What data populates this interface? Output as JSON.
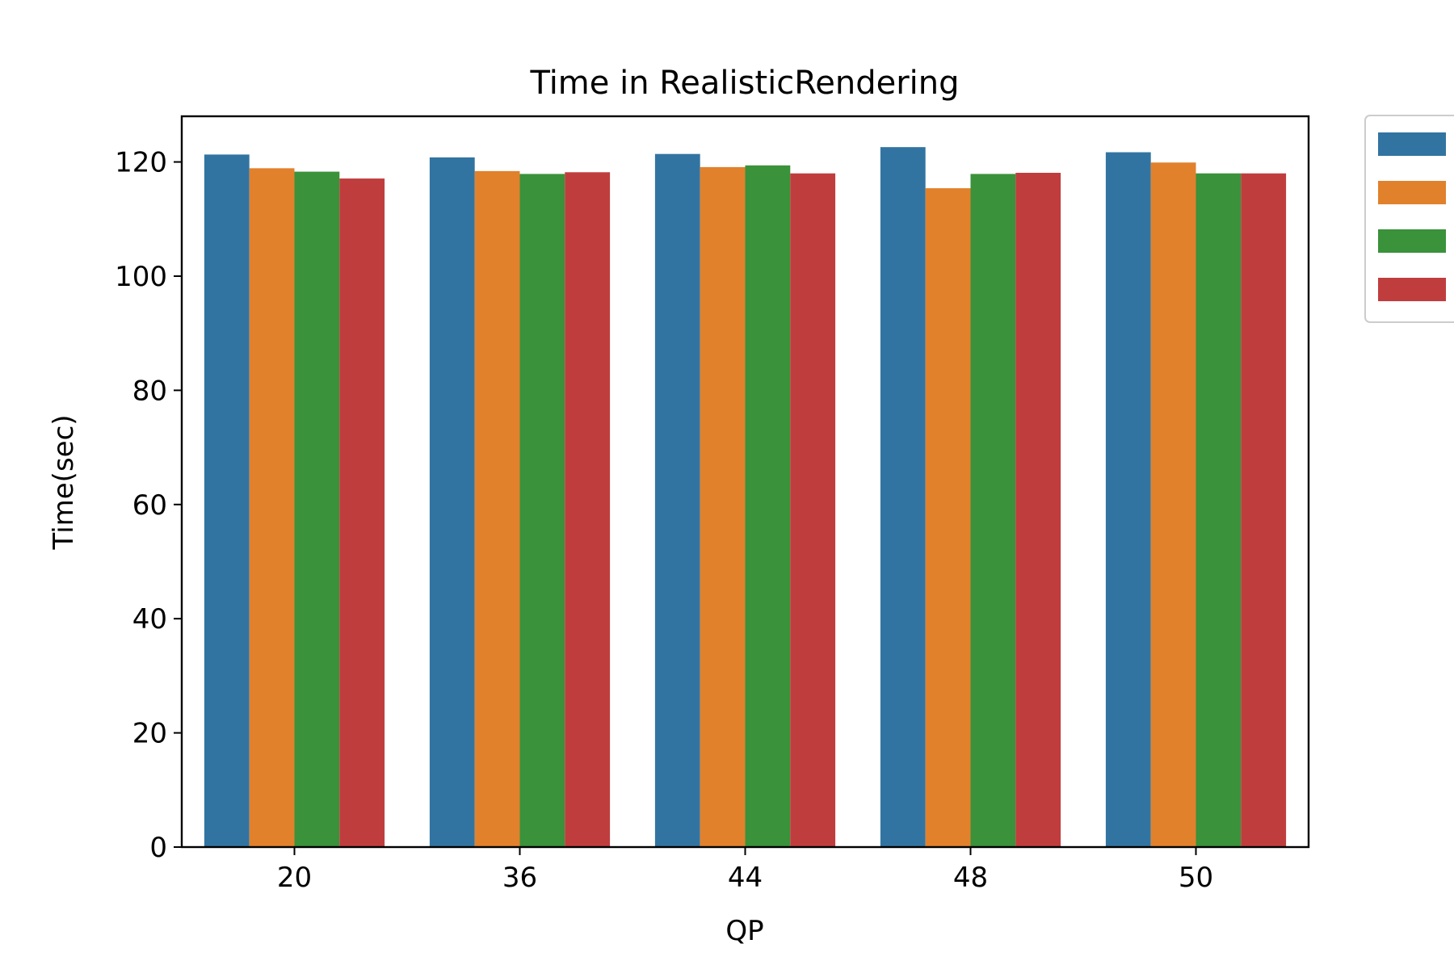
{
  "chart_data": {
    "type": "bar",
    "title": "Time in RealisticRendering",
    "xlabel": "QP",
    "ylabel": "Time(sec)",
    "categories": [
      "20",
      "36",
      "44",
      "48",
      "50"
    ],
    "ylim": [
      0,
      128
    ],
    "yticks": [
      0,
      20,
      40,
      60,
      80,
      100,
      120
    ],
    "grid": false,
    "legend": "outside-top-right",
    "series": [
      {
        "color": "#3274a1",
        "values": [
          121.3,
          120.8,
          121.4,
          122.6,
          121.7
        ]
      },
      {
        "color": "#e1812c",
        "values": [
          118.9,
          118.4,
          119.1,
          115.4,
          119.9
        ]
      },
      {
        "color": "#3a923a",
        "values": [
          118.3,
          117.9,
          119.4,
          117.9,
          118.0
        ]
      },
      {
        "color": "#c03d3e",
        "values": [
          117.1,
          118.2,
          118.0,
          118.1,
          118.0
        ]
      }
    ]
  }
}
